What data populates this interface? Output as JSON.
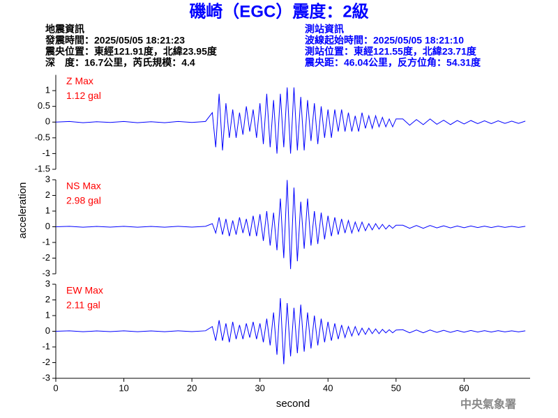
{
  "header": {
    "title": "磯崎（EGC）震度：2級",
    "event": [
      "地震資訊",
      "發震時間：2025/05/05 18:21:23",
      "震央位置：東經121.91度，北緯23.95度",
      "深　度：16.7公里，芮氏規模：4.4"
    ],
    "station": [
      "測站資訊",
      "波線起始時間：2025/05/05 18:21:10",
      "測站位置：東經121.55度，北緯23.71度",
      "震央距：46.04公里，反方位角：54.31度"
    ]
  },
  "ylabel": "acceleration",
  "footer": "中央氣象署",
  "chart_data": [
    {
      "type": "line",
      "annotations": [
        "Z Max",
        "1.12 gal"
      ],
      "color": "#0000ff",
      "xlim": [
        0,
        69.7
      ],
      "ylim": [
        -1.5,
        1.5
      ],
      "yticks": [
        -1.5,
        -1,
        -0.5,
        0,
        0.5,
        1
      ],
      "x": [
        0,
        2,
        4,
        6,
        8,
        10,
        12,
        14,
        16,
        18,
        20,
        22,
        23,
        23.5,
        24,
        24.5,
        25,
        25.5,
        26,
        26.5,
        27,
        27.5,
        28,
        28.5,
        29,
        29.5,
        30,
        30.5,
        31,
        31.5,
        32,
        32.5,
        33,
        33.5,
        34,
        34.5,
        35,
        35.5,
        36,
        36.5,
        37,
        37.5,
        38,
        38.5,
        39,
        39.5,
        40,
        40.5,
        41,
        41.5,
        42,
        42.5,
        43,
        43.5,
        44,
        44.5,
        45,
        45.5,
        46,
        46.5,
        47,
        47.5,
        48,
        48.5,
        49,
        49.5,
        50,
        51,
        52,
        53,
        54,
        55,
        56,
        57,
        58,
        59,
        60,
        61,
        62,
        63,
        64,
        65,
        66,
        67,
        68,
        69
      ],
      "values": [
        0,
        0.02,
        -0.02,
        0.01,
        -0.01,
        0.02,
        -0.02,
        0.01,
        -0.02,
        0.02,
        -0.01,
        0.02,
        0.3,
        -0.8,
        0.9,
        -0.9,
        0.6,
        -0.5,
        0.4,
        -0.5,
        0.3,
        -0.4,
        0.5,
        -0.3,
        0.4,
        -0.5,
        0.6,
        -0.7,
        0.9,
        -0.8,
        0.7,
        -1.0,
        0.9,
        -0.8,
        1.1,
        -1.0,
        1.1,
        -0.9,
        0.8,
        -0.9,
        0.7,
        -0.6,
        0.6,
        -0.7,
        0.5,
        -0.5,
        0.4,
        -0.5,
        0.4,
        -0.3,
        0.4,
        -0.3,
        0.3,
        -0.3,
        0.2,
        -0.3,
        0.3,
        -0.2,
        0.2,
        -0.2,
        0.2,
        -0.15,
        0.15,
        -0.15,
        0.1,
        -0.15,
        0.1,
        0.1,
        -0.1,
        0.08,
        -0.08,
        0.1,
        -0.07,
        0.06,
        -0.08,
        0.05,
        -0.06,
        0.05,
        -0.05,
        0.04,
        -0.05,
        0.04,
        -0.04,
        0.03,
        -0.04,
        0.03
      ]
    },
    {
      "type": "line",
      "annotations": [
        "NS Max",
        "2.98 gal"
      ],
      "color": "#0000ff",
      "xlim": [
        0,
        69.7
      ],
      "ylim": [
        -3,
        3
      ],
      "yticks": [
        -3,
        -2,
        -1,
        0,
        1,
        2,
        3
      ],
      "x": [
        0,
        2,
        4,
        6,
        8,
        10,
        12,
        14,
        16,
        18,
        20,
        22,
        23,
        23.5,
        24,
        24.5,
        25,
        25.5,
        26,
        26.5,
        27,
        27.5,
        28,
        28.5,
        29,
        29.5,
        30,
        30.5,
        31,
        31.5,
        32,
        32.5,
        33,
        33.5,
        34,
        34.5,
        35,
        35.5,
        36,
        36.5,
        37,
        37.5,
        38,
        38.5,
        39,
        39.5,
        40,
        40.5,
        41,
        41.5,
        42,
        42.5,
        43,
        43.5,
        44,
        44.5,
        45,
        45.5,
        46,
        46.5,
        47,
        47.5,
        48,
        48.5,
        49,
        49.5,
        50,
        51,
        52,
        53,
        54,
        55,
        56,
        57,
        58,
        59,
        60,
        61,
        62,
        63,
        64,
        65,
        66,
        67,
        68,
        69
      ],
      "values": [
        0,
        0.03,
        -0.03,
        0.02,
        -0.02,
        0.03,
        -0.03,
        0.02,
        -0.03,
        0.03,
        -0.02,
        0.03,
        0.2,
        -0.4,
        0.6,
        -0.5,
        0.5,
        -0.6,
        0.4,
        -0.5,
        0.6,
        -0.4,
        0.5,
        -0.6,
        0.7,
        -0.6,
        0.8,
        -0.9,
        1.0,
        -1.2,
        0.9,
        -1.5,
        1.8,
        -2.0,
        2.98,
        -2.7,
        2.5,
        -2.2,
        1.6,
        -1.4,
        1.8,
        -1.2,
        1.0,
        -1.1,
        0.9,
        -0.8,
        0.7,
        -0.6,
        0.6,
        -0.5,
        0.5,
        -0.4,
        0.4,
        -0.4,
        0.3,
        -0.3,
        0.3,
        -0.25,
        0.2,
        -0.2,
        0.2,
        -0.15,
        0.15,
        -0.15,
        0.1,
        -0.1,
        0.1,
        0.1,
        -0.1,
        0.08,
        -0.1,
        0.08,
        -0.07,
        0.06,
        -0.07,
        0.05,
        -0.06,
        0.05,
        -0.05,
        0.04,
        -0.05,
        0.04,
        -0.04,
        0.03,
        -0.04,
        0.03
      ]
    },
    {
      "type": "line",
      "annotations": [
        "EW Max",
        "2.11 gal"
      ],
      "color": "#0000ff",
      "xlabel": "second",
      "xlim": [
        0,
        69.7
      ],
      "ylim": [
        -3,
        3
      ],
      "yticks": [
        -3,
        -2,
        -1,
        0,
        1,
        2,
        3
      ],
      "xticks": [
        0,
        10,
        20,
        30,
        40,
        50,
        60
      ],
      "x": [
        0,
        2,
        4,
        6,
        8,
        10,
        12,
        14,
        16,
        18,
        20,
        22,
        23,
        23.5,
        24,
        24.5,
        25,
        25.5,
        26,
        26.5,
        27,
        27.5,
        28,
        28.5,
        29,
        29.5,
        30,
        30.5,
        31,
        31.5,
        32,
        32.5,
        33,
        33.5,
        34,
        34.5,
        35,
        35.5,
        36,
        36.5,
        37,
        37.5,
        38,
        38.5,
        39,
        39.5,
        40,
        40.5,
        41,
        41.5,
        42,
        42.5,
        43,
        43.5,
        44,
        44.5,
        45,
        45.5,
        46,
        46.5,
        47,
        47.5,
        48,
        48.5,
        49,
        49.5,
        50,
        51,
        52,
        53,
        54,
        55,
        56,
        57,
        58,
        59,
        60,
        61,
        62,
        63,
        64,
        65,
        66,
        67,
        68,
        69
      ],
      "values": [
        0,
        0.03,
        -0.03,
        0.02,
        -0.02,
        0.03,
        -0.03,
        0.02,
        -0.03,
        0.03,
        -0.02,
        0.03,
        0.3,
        -0.6,
        0.7,
        -0.6,
        0.5,
        -0.7,
        0.6,
        -0.5,
        0.4,
        -0.5,
        0.5,
        -0.4,
        0.6,
        -0.5,
        0.5,
        -0.7,
        0.8,
        -0.9,
        1.2,
        -1.5,
        2.11,
        -2.1,
        1.8,
        -1.6,
        1.5,
        -1.4,
        1.7,
        -1.3,
        1.2,
        -1.1,
        1.0,
        -0.9,
        0.8,
        -0.7,
        0.6,
        -0.6,
        0.5,
        -0.5,
        0.4,
        -0.4,
        0.3,
        -0.3,
        0.3,
        -0.25,
        0.2,
        -0.2,
        0.2,
        -0.15,
        0.15,
        -0.15,
        0.12,
        -0.1,
        0.1,
        -0.1,
        0.08,
        0.1,
        -0.1,
        0.08,
        -0.1,
        0.08,
        -0.07,
        0.06,
        -0.07,
        0.05,
        -0.06,
        0.05,
        -0.05,
        0.04,
        -0.05,
        0.04,
        -0.04,
        0.03,
        -0.04,
        0.03
      ]
    }
  ]
}
